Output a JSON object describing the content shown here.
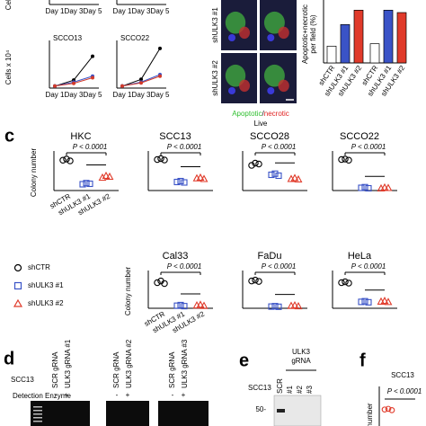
{
  "panel_b": {
    "growth": {
      "y_label": "Cells x 10⁴",
      "x": [
        "Day 1",
        "Day 3",
        "Day 5"
      ],
      "ylim": [
        0,
        12
      ],
      "charts": [
        {
          "title": "SCCO13",
          "series": [
            {
              "color": "#000000",
              "values": [
                0.5,
                2,
                8
              ]
            },
            {
              "color": "#3a53c7",
              "values": [
                0.5,
                1.5,
                3
              ]
            },
            {
              "color": "#d23a2a",
              "values": [
                0.5,
                1.2,
                2.6
              ]
            }
          ]
        },
        {
          "title": "SCCO22",
          "series": [
            {
              "color": "#000000",
              "values": [
                0.5,
                2.2,
                10
              ]
            },
            {
              "color": "#3a53c7",
              "values": [
                0.5,
                1.5,
                3.4
              ]
            },
            {
              "color": "#d23a2a",
              "values": [
                0.5,
                1.3,
                3
              ]
            }
          ]
        }
      ]
    },
    "micrograph": {
      "row_labels": [
        "shULK3 #1",
        "shULK3 #2"
      ],
      "legend_1": [
        {
          "text": "Apoptotic",
          "color": "#2fbf2f"
        },
        {
          "text": "/",
          "color": "#000000"
        },
        {
          "text": "necrotic",
          "color": "#e02020"
        }
      ],
      "legend_2": {
        "text": "Live",
        "color": "#2020e0"
      }
    },
    "bars": {
      "y_label": [
        "Apoptotic+necrotic",
        "per field (%)"
      ],
      "categories": [
        "shCTR",
        "shULK3 #1",
        "shULK3 #2",
        "shCTR",
        "shULK3 #1",
        "shULK3 #2"
      ],
      "colors": [
        "#ffffff",
        "#3a53c7",
        "#e03a2a",
        "#ffffff",
        "#3a53c7",
        "#e03a2a"
      ],
      "values": [
        7,
        16,
        22,
        8,
        22,
        21
      ],
      "ylim": [
        0,
        30
      ]
    }
  },
  "panel_c": {
    "label": "c",
    "y_label": "Colony number",
    "p_text": "P < 0.0001",
    "categories": [
      "shCTR",
      "shULK3 #1",
      "shULK3 #2"
    ],
    "legend": [
      {
        "name": "shCTR",
        "marker": "circle",
        "color": "#000000"
      },
      {
        "name": "shULK3 #1",
        "marker": "square",
        "color": "#3a53c7"
      },
      {
        "name": "shULK3 #2",
        "marker": "triangle",
        "color": "#e03a2a"
      }
    ],
    "ylim": [
      0,
      160
    ],
    "plots": [
      {
        "title": "HKC",
        "values": [
          [
            135,
            140,
            132
          ],
          [
            28,
            33,
            30
          ],
          [
            58,
            66,
            62
          ]
        ]
      },
      {
        "title": "SCC13",
        "values": [
          [
            138,
            142,
            136
          ],
          [
            38,
            42,
            36
          ],
          [
            55,
            58,
            52
          ]
        ]
      },
      {
        "title": "SCCO28",
        "values": [
          [
            112,
            122,
            118
          ],
          [
            70,
            75,
            66
          ],
          [
            52,
            56,
            50
          ]
        ]
      },
      {
        "title": "SCCO22",
        "values": [
          [
            138,
            140,
            135
          ],
          [
            12,
            15,
            10
          ],
          [
            10,
            14,
            12
          ]
        ]
      },
      {
        "title": "Cal33",
        "values": [
          [
            120,
            128,
            116
          ],
          [
            12,
            15,
            10
          ],
          [
            14,
            17,
            12
          ]
        ]
      },
      {
        "title": "FaDu",
        "values": [
          [
            128,
            132,
            126
          ],
          [
            8,
            10,
            7
          ],
          [
            12,
            14,
            10
          ]
        ]
      },
      {
        "title": "HeLa",
        "values": [
          [
            120,
            124,
            118
          ],
          [
            30,
            33,
            28
          ],
          [
            32,
            35,
            30
          ]
        ]
      }
    ]
  },
  "panel_d": {
    "label": "d",
    "cell": "SCC13",
    "lanes": [
      "SCR gRNA",
      "ULK3 gRNA #1",
      "SCR gRNA",
      "ULK3 gRNA #2",
      "SCR gRNA",
      "ULK3 gRNA #3"
    ],
    "enzyme_label": "Detection Enzyme",
    "signs": [
      "-",
      "+"
    ]
  },
  "panel_e": {
    "label": "e",
    "cell": "SCC13",
    "header": [
      "ULK3",
      "gRNA"
    ],
    "lanes": [
      "SCR",
      "#1",
      "#2",
      "#3"
    ],
    "marker": "50-"
  },
  "panel_f": {
    "label": "f",
    "cell": "SCC13",
    "y_label": "number",
    "p_text": "P < 0.0001",
    "color": "#e03a2a",
    "values": [
      100,
      104,
      96
    ],
    "ylim": [
      0,
      120
    ]
  }
}
